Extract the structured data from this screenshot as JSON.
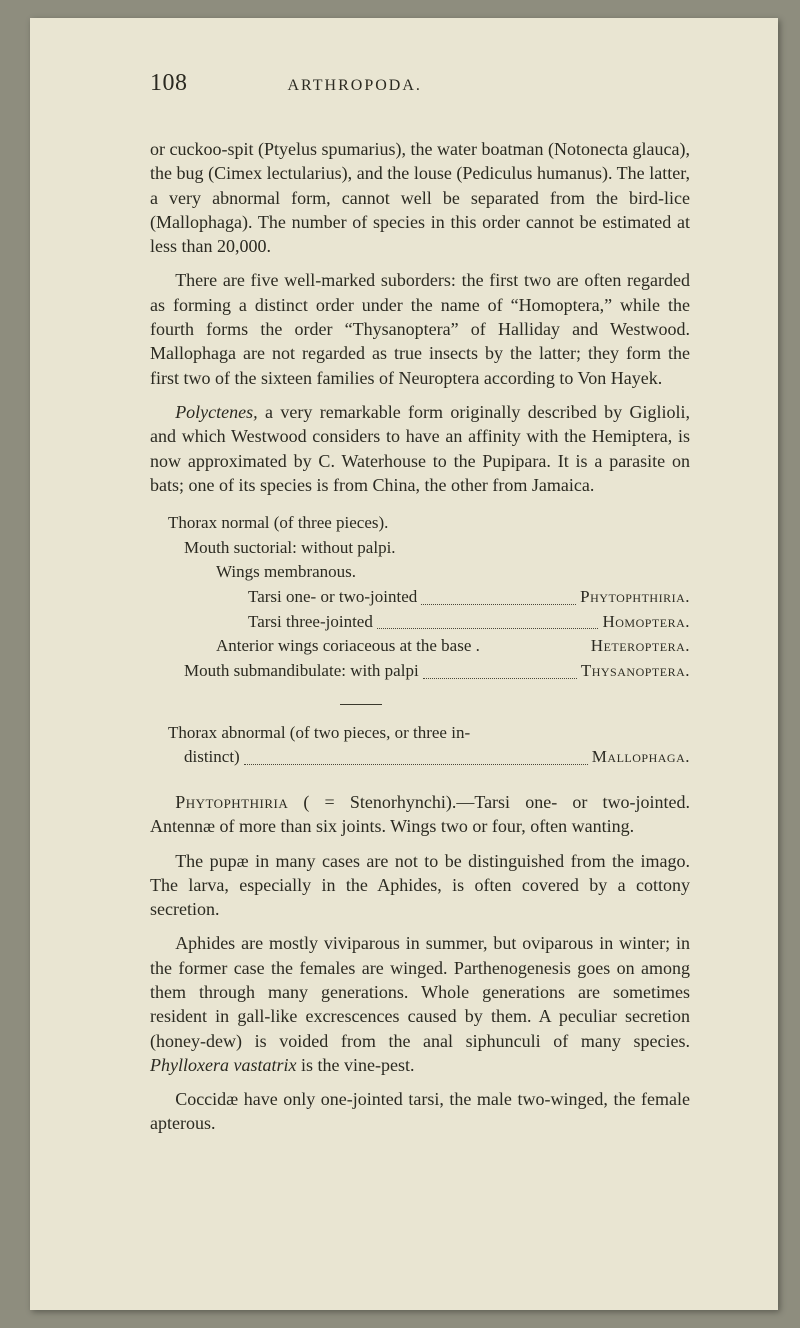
{
  "header": {
    "page_number": "108",
    "running_head": "ARTHROPODA."
  },
  "para1": "or cuckoo-spit (Ptyelus spumarius), the water boatman (Notonecta glauca), the bug (Cimex lectularius), and the louse (Pediculus humanus). The latter, a very abnormal form, cannot well be separated from the bird-lice (Mallophaga). The number of species in this order cannot be estimated at less than 20,000.",
  "para2": "There are five well-marked suborders: the first two are often regarded as forming a distinct order under the name of “Homoptera,” while the fourth forms the order “Thysanoptera” of Halliday and Westwood. Mallophaga are not regarded as true insects by the latter; they form the first two of the sixteen families of Neuroptera according to Von Hayek.",
  "para3_lead": "Polyctenes,",
  "para3_rest": " a very remarkable form originally described by Giglioli, and which Westwood considers to have an affinity with the Hemiptera, is now approximated by C. Waterhouse to the Pupipara. It is a parasite on bats; one of its species is from China, the other from Jamaica.",
  "key1": {
    "l1": "Thorax normal (of three pieces).",
    "l2": "Mouth suctorial: without palpi.",
    "l3": "Wings membranous.",
    "l4_label": "Tarsi one- or two-jointed",
    "l4_value": "Phytophthiria.",
    "l5_label": "Tarsi three-jointed",
    "l5_value": "Homoptera.",
    "l6_label": "Anterior wings coriaceous at the base .",
    "l6_value": "Heteroptera.",
    "l7_label": "Mouth submandibulate: with palpi",
    "l7_value": "Thysanoptera."
  },
  "key2": {
    "l1a": "Thorax abnormal (of two pieces, or three in-",
    "l1b_label": "distinct)",
    "l1b_value": "Mallophaga."
  },
  "para4_lead": "Phytophthiria",
  "para4_rest": " ( = Stenorhynchi).—Tarsi one- or two-jointed. Antennæ of more than six joints. Wings two or four, often wanting.",
  "para5": "The pupæ in many cases are not to be distinguished from the imago. The larva, especially in the Aphides, is often covered by a cottony secretion.",
  "para6_a": "Aphides are mostly viviparous in summer, but oviparous in winter; in the former case the females are winged. Parthenogenesis goes on among them through many generations. Whole generations are sometimes resident in gall-like excrescences caused by them. A peculiar secretion (honey-dew) is voided from the anal siphunculi of many species. ",
  "para6_b": "Phylloxera vastatrix",
  "para6_c": " is the vine-pest.",
  "para7": "Coccidæ have only one-jointed tarsi, the male two-winged, the female apterous."
}
